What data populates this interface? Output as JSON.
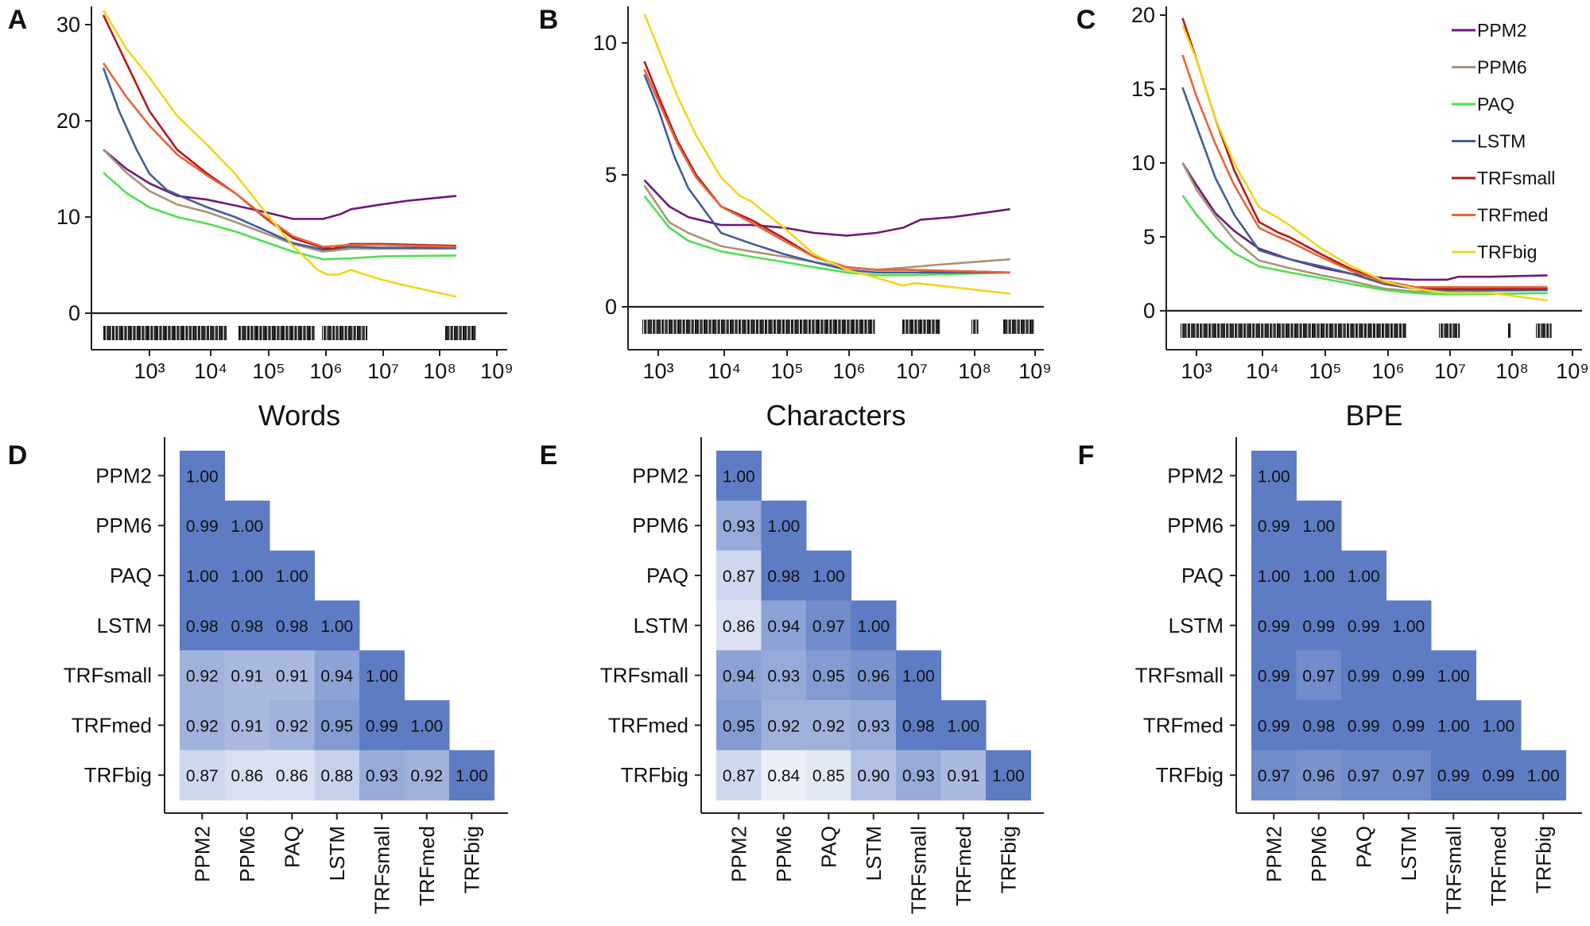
{
  "panels": [
    {
      "letter": "A",
      "xlabel": "Words",
      "yticks": [
        0,
        10,
        20,
        30
      ],
      "ylim": [
        -3.5,
        33
      ],
      "xticks": [
        "10³",
        "10⁴",
        "10⁵",
        "10⁶",
        "10⁷",
        "10⁸",
        "10⁹"
      ]
    },
    {
      "letter": "B",
      "xlabel": "Characters",
      "yticks": [
        0,
        5,
        10
      ],
      "ylim": [
        -1.5,
        11.5
      ],
      "xticks": [
        "10³",
        "10⁴",
        "10⁵",
        "10⁶",
        "10⁷",
        "10⁸",
        "10⁹"
      ]
    },
    {
      "letter": "C",
      "xlabel": "BPE",
      "yticks": [
        0,
        5,
        10,
        15,
        20
      ],
      "ylim": [
        -2.4,
        20.8
      ],
      "xticks": [
        "10³",
        "10⁴",
        "10⁵",
        "10⁶",
        "10⁷",
        "10⁸",
        "10⁹"
      ]
    }
  ],
  "legend": [
    "PPM2",
    "PPM6",
    "PAQ",
    "LSTM",
    "TRFsmall",
    "TRFmed",
    "TRFbig"
  ],
  "colors": {
    "PPM2": "#6b1a7a",
    "PPM6": "#a89477",
    "PAQ": "#4fe04f",
    "LSTM": "#3f5f98",
    "TRFsmall": "#b41a1a",
    "TRFmed": "#e8643a",
    "TRFbig": "#f2d61c",
    "heat_high": "#5e7cc4",
    "heat_low": "#ffffff"
  },
  "chart_data": [
    {
      "type": "line",
      "panel": "A",
      "xlabel": "Words",
      "ylabel": "",
      "xscale": "log",
      "xlim": [
        150,
        1000000000
      ],
      "ylim": [
        -3.5,
        33
      ],
      "grid": false,
      "legend_position": "none",
      "series": [
        {
          "name": "PPM2",
          "x": [
            160,
            400,
            1000,
            3000,
            10000,
            30000,
            100000,
            300000,
            1000000,
            2000000,
            3000000,
            10000000,
            30000000,
            200000000
          ],
          "y": [
            17,
            15,
            13.5,
            12.2,
            11.8,
            11.2,
            10.5,
            9.8,
            9.8,
            10.3,
            10.8,
            11.3,
            11.7,
            12.2
          ]
        },
        {
          "name": "PPM6",
          "x": [
            160,
            400,
            1000,
            3000,
            10000,
            30000,
            100000,
            300000,
            1000000,
            3000000,
            10000000,
            200000000
          ],
          "y": [
            17,
            14.6,
            12.7,
            11.3,
            10.5,
            9.5,
            8.3,
            7.2,
            6.4,
            6.7,
            6.7,
            6.7
          ]
        },
        {
          "name": "PAQ",
          "x": [
            160,
            400,
            1000,
            3000,
            10000,
            30000,
            100000,
            300000,
            1000000,
            3000000,
            10000000,
            200000000
          ],
          "y": [
            14.6,
            12.5,
            11,
            10,
            9.3,
            8.5,
            7.4,
            6.4,
            5.6,
            5.7,
            5.9,
            6.0
          ]
        },
        {
          "name": "LSTM",
          "x": [
            160,
            300,
            600,
            1000,
            2000,
            4000,
            10000,
            30000,
            100000,
            300000,
            1000000,
            3000000,
            10000000,
            200000000
          ],
          "y": [
            25.5,
            21,
            17,
            14.5,
            12.8,
            12,
            11,
            10,
            8.6,
            7.3,
            6.6,
            6.9,
            6.8,
            6.8
          ]
        },
        {
          "name": "TRFsmall",
          "x": [
            160,
            400,
            1000,
            3000,
            10000,
            30000,
            100000,
            300000,
            1000000,
            1500000,
            3000000,
            10000000,
            200000000
          ],
          "y": [
            31,
            26,
            21,
            17,
            14.5,
            12.5,
            9.9,
            7.8,
            6.8,
            6.7,
            7.2,
            7.2,
            7.0
          ]
        },
        {
          "name": "TRFmed",
          "x": [
            160,
            400,
            1000,
            3000,
            10000,
            30000,
            100000,
            300000,
            1000000,
            3000000,
            10000000,
            200000000
          ],
          "y": [
            26,
            22.5,
            19.5,
            16.5,
            14.3,
            12.5,
            10,
            8,
            6.9,
            7.1,
            7.1,
            6.9
          ]
        },
        {
          "name": "TRFbig",
          "x": [
            160,
            400,
            1000,
            3000,
            10000,
            30000,
            100000,
            300000,
            800000,
            1200000,
            1800000,
            3000000,
            10000000,
            30000000,
            200000000
          ],
          "y": [
            31.5,
            27.5,
            24.5,
            20.5,
            17.5,
            14.5,
            10.5,
            7,
            4.5,
            4.0,
            4.0,
            4.5,
            3.5,
            2.8,
            1.7
          ]
        }
      ]
    },
    {
      "type": "line",
      "panel": "B",
      "xlabel": "Characters",
      "ylabel": "",
      "xscale": "log",
      "xlim": [
        500,
        1000000000
      ],
      "ylim": [
        -1.5,
        11.5
      ],
      "grid": false,
      "legend_position": "none",
      "series": [
        {
          "name": "PPM2",
          "x": [
            600,
            1500,
            3000,
            10000,
            30000,
            100000,
            300000,
            1000000,
            3000000,
            8000000,
            15000000,
            50000000,
            400000000
          ],
          "y": [
            4.8,
            3.8,
            3.4,
            3.1,
            3.1,
            3.0,
            2.8,
            2.7,
            2.8,
            3.0,
            3.3,
            3.4,
            3.7
          ]
        },
        {
          "name": "PPM6",
          "x": [
            600,
            1500,
            3000,
            10000,
            30000,
            100000,
            300000,
            1000000,
            3000000,
            10000000,
            30000000,
            400000000
          ],
          "y": [
            4.6,
            3.2,
            2.8,
            2.3,
            2.1,
            1.9,
            1.7,
            1.5,
            1.4,
            1.5,
            1.6,
            1.8
          ]
        },
        {
          "name": "PAQ",
          "x": [
            600,
            1500,
            3000,
            10000,
            30000,
            100000,
            300000,
            1000000,
            3000000,
            10000000,
            400000000
          ],
          "y": [
            4.2,
            3.0,
            2.5,
            2.1,
            1.9,
            1.7,
            1.5,
            1.3,
            1.2,
            1.2,
            1.3
          ]
        },
        {
          "name": "LSTM",
          "x": [
            600,
            1000,
            1800,
            3000,
            10000,
            30000,
            100000,
            300000,
            1000000,
            3000000,
            10000000,
            400000000
          ],
          "y": [
            8.8,
            7.5,
            5.7,
            4.5,
            2.8,
            2.4,
            2.0,
            1.7,
            1.4,
            1.3,
            1.3,
            1.3
          ]
        },
        {
          "name": "TRFsmall",
          "x": [
            600,
            1000,
            2000,
            4000,
            10000,
            30000,
            100000,
            300000,
            1000000,
            3000000,
            10000000,
            400000000
          ],
          "y": [
            9.3,
            8.0,
            6.3,
            5.0,
            3.8,
            3.3,
            2.6,
            1.9,
            1.5,
            1.4,
            1.4,
            1.3
          ]
        },
        {
          "name": "TRFmed",
          "x": [
            600,
            1000,
            2000,
            4000,
            10000,
            30000,
            100000,
            300000,
            1000000,
            3000000,
            10000000,
            400000000
          ],
          "y": [
            9.0,
            7.8,
            6.2,
            4.9,
            3.8,
            3.2,
            2.5,
            1.9,
            1.5,
            1.4,
            1.4,
            1.3
          ]
        },
        {
          "name": "TRFbig",
          "x": [
            600,
            1000,
            2000,
            4000,
            10000,
            20000,
            30000,
            100000,
            300000,
            1000000,
            3000000,
            8000000,
            12000000,
            30000000,
            400000000
          ],
          "y": [
            11.1,
            9.8,
            8.0,
            6.5,
            4.9,
            4.2,
            4.0,
            3.0,
            2.0,
            1.4,
            1.1,
            0.8,
            0.9,
            0.8,
            0.5
          ]
        }
      ]
    },
    {
      "type": "line",
      "panel": "C",
      "xlabel": "BPE",
      "ylabel": "",
      "xscale": "log",
      "xlim": [
        500,
        1000000000
      ],
      "ylim": [
        -2.4,
        20.8
      ],
      "grid": false,
      "legend_position": "top-right",
      "series": [
        {
          "name": "PPM2",
          "x": [
            600,
            1000,
            2000,
            4000,
            10000,
            30000,
            100000,
            300000,
            1000000,
            3000000,
            10000000,
            15000000,
            50000000,
            400000000
          ],
          "y": [
            10.0,
            8.5,
            6.6,
            5.4,
            4.2,
            3.5,
            2.9,
            2.5,
            2.2,
            2.1,
            2.1,
            2.3,
            2.3,
            2.4
          ]
        },
        {
          "name": "PPM6",
          "x": [
            600,
            1000,
            2000,
            4000,
            10000,
            30000,
            100000,
            300000,
            1000000,
            3000000,
            10000000,
            400000000
          ],
          "y": [
            10.0,
            8.2,
            6.4,
            4.8,
            3.4,
            2.9,
            2.4,
            2.0,
            1.5,
            1.3,
            1.3,
            1.4
          ]
        },
        {
          "name": "PAQ",
          "x": [
            600,
            1000,
            2000,
            4000,
            10000,
            30000,
            100000,
            300000,
            1000000,
            3000000,
            10000000,
            400000000
          ],
          "y": [
            7.8,
            6.5,
            5.0,
            3.9,
            3.0,
            2.6,
            2.2,
            1.8,
            1.4,
            1.2,
            1.1,
            1.2
          ]
        },
        {
          "name": "LSTM",
          "x": [
            600,
            1000,
            2000,
            4000,
            10000,
            20000,
            30000,
            100000,
            300000,
            1000000,
            3000000,
            10000000,
            400000000
          ],
          "y": [
            15.1,
            12.5,
            9.0,
            6.5,
            4.1,
            3.7,
            3.5,
            3.0,
            2.5,
            1.8,
            1.5,
            1.4,
            1.4
          ]
        },
        {
          "name": "TRFsmall",
          "x": [
            600,
            1000,
            2000,
            4000,
            10000,
            20000,
            30000,
            100000,
            300000,
            1000000,
            3000000,
            10000000,
            400000000
          ],
          "y": [
            19.8,
            17.0,
            13.0,
            9.5,
            6.0,
            5.3,
            5.0,
            3.8,
            2.8,
            2.0,
            1.6,
            1.5,
            1.5
          ]
        },
        {
          "name": "TRFmed",
          "x": [
            600,
            1000,
            2000,
            4000,
            10000,
            20000,
            30000,
            100000,
            300000,
            1000000,
            3000000,
            10000000,
            400000000
          ],
          "y": [
            17.3,
            14.5,
            11.3,
            8.5,
            5.6,
            5.0,
            4.7,
            3.6,
            2.7,
            1.9,
            1.6,
            1.6,
            1.6
          ]
        },
        {
          "name": "TRFbig",
          "x": [
            600,
            1000,
            2000,
            4000,
            10000,
            20000,
            30000,
            100000,
            300000,
            1000000,
            3000000,
            10000000,
            50000000,
            400000000
          ],
          "y": [
            19.3,
            17.0,
            13.0,
            10.0,
            7.0,
            6.3,
            5.8,
            4.2,
            3.0,
            2.0,
            1.5,
            1.2,
            1.2,
            0.7
          ]
        }
      ]
    },
    {
      "type": "heatmap",
      "panel": "D",
      "labels": [
        "PPM2",
        "PPM6",
        "PAQ",
        "LSTM",
        "TRFsmall",
        "TRFmed",
        "TRFbig"
      ],
      "values": [
        [
          1.0
        ],
        [
          0.99,
          1.0
        ],
        [
          1.0,
          1.0,
          1.0
        ],
        [
          0.98,
          0.98,
          0.98,
          1.0
        ],
        [
          0.92,
          0.91,
          0.91,
          0.94,
          1.0
        ],
        [
          0.92,
          0.91,
          0.92,
          0.95,
          0.99,
          1.0
        ],
        [
          0.87,
          0.86,
          0.86,
          0.88,
          0.93,
          0.92,
          1.0
        ]
      ]
    },
    {
      "type": "heatmap",
      "panel": "E",
      "labels": [
        "PPM2",
        "PPM6",
        "PAQ",
        "LSTM",
        "TRFsmall",
        "TRFmed",
        "TRFbig"
      ],
      "values": [
        [
          1.0
        ],
        [
          0.93,
          1.0
        ],
        [
          0.87,
          0.98,
          1.0
        ],
        [
          0.86,
          0.94,
          0.97,
          1.0
        ],
        [
          0.94,
          0.93,
          0.95,
          0.96,
          1.0
        ],
        [
          0.95,
          0.92,
          0.92,
          0.93,
          0.98,
          1.0
        ],
        [
          0.87,
          0.84,
          0.85,
          0.9,
          0.93,
          0.91,
          1.0
        ]
      ]
    },
    {
      "type": "heatmap",
      "panel": "F",
      "labels": [
        "PPM2",
        "PPM6",
        "PAQ",
        "LSTM",
        "TRFsmall",
        "TRFmed",
        "TRFbig"
      ],
      "values": [
        [
          1.0
        ],
        [
          0.99,
          1.0
        ],
        [
          1.0,
          1.0,
          1.0
        ],
        [
          0.99,
          0.99,
          0.99,
          1.0
        ],
        [
          0.99,
          0.97,
          0.99,
          0.99,
          1.0
        ],
        [
          0.99,
          0.98,
          0.99,
          0.99,
          1.0,
          1.0
        ],
        [
          0.97,
          0.96,
          0.97,
          0.97,
          0.99,
          0.99,
          1.0
        ]
      ]
    }
  ]
}
